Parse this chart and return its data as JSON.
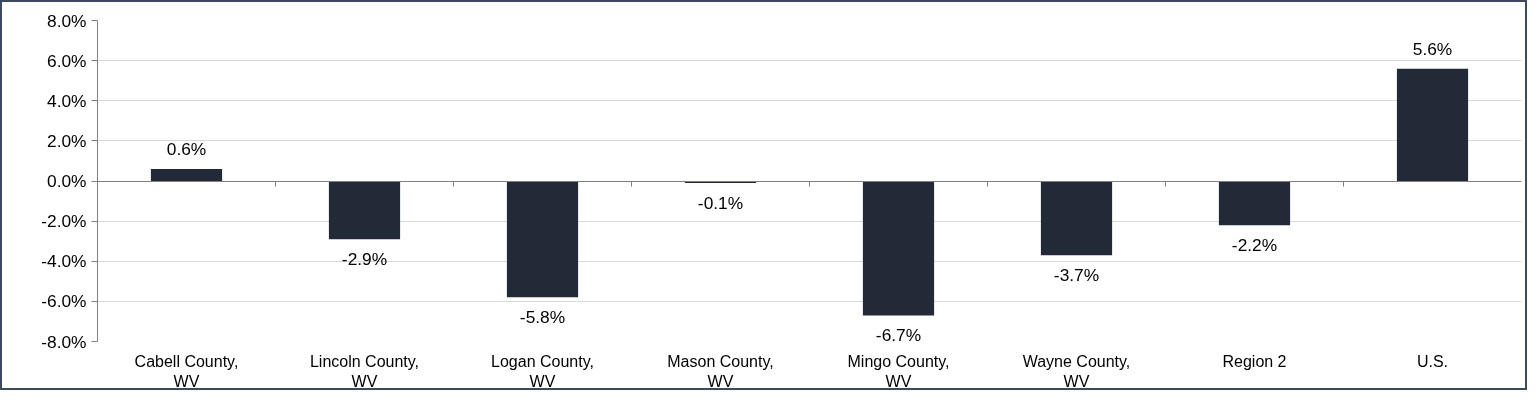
{
  "chart_data": {
    "type": "bar",
    "categories": [
      "Cabell County,\nWV",
      "Lincoln County,\nWV",
      "Logan County,\nWV",
      "Mason County,\nWV",
      "Mingo County,\nWV",
      "Wayne County,\nWV",
      "Region 2",
      "U.S."
    ],
    "values": [
      0.6,
      -2.9,
      -5.8,
      -0.1,
      -6.7,
      -3.7,
      -2.2,
      5.6
    ],
    "color": "#222a37",
    "value_labels": [
      "0.6%",
      "-2.9%",
      "-5.8%",
      "-0.1%",
      "-6.7%",
      "-3.7%",
      "-2.2%",
      "5.6%"
    ],
    "ylim": [
      -8,
      8
    ],
    "yticks": [
      {
        "value": -8,
        "label": "-8.0%"
      },
      {
        "value": -6,
        "label": "-6.0%"
      },
      {
        "value": -4,
        "label": "-4.0%"
      },
      {
        "value": -2,
        "label": "-2.0%"
      },
      {
        "value": 0,
        "label": "0.0%"
      },
      {
        "value": 2,
        "label": "2.0%"
      },
      {
        "value": 4,
        "label": "4.0%"
      },
      {
        "value": 6,
        "label": "6.0%"
      },
      {
        "value": 8,
        "label": "8.0%"
      }
    ],
    "grid": "y"
  }
}
